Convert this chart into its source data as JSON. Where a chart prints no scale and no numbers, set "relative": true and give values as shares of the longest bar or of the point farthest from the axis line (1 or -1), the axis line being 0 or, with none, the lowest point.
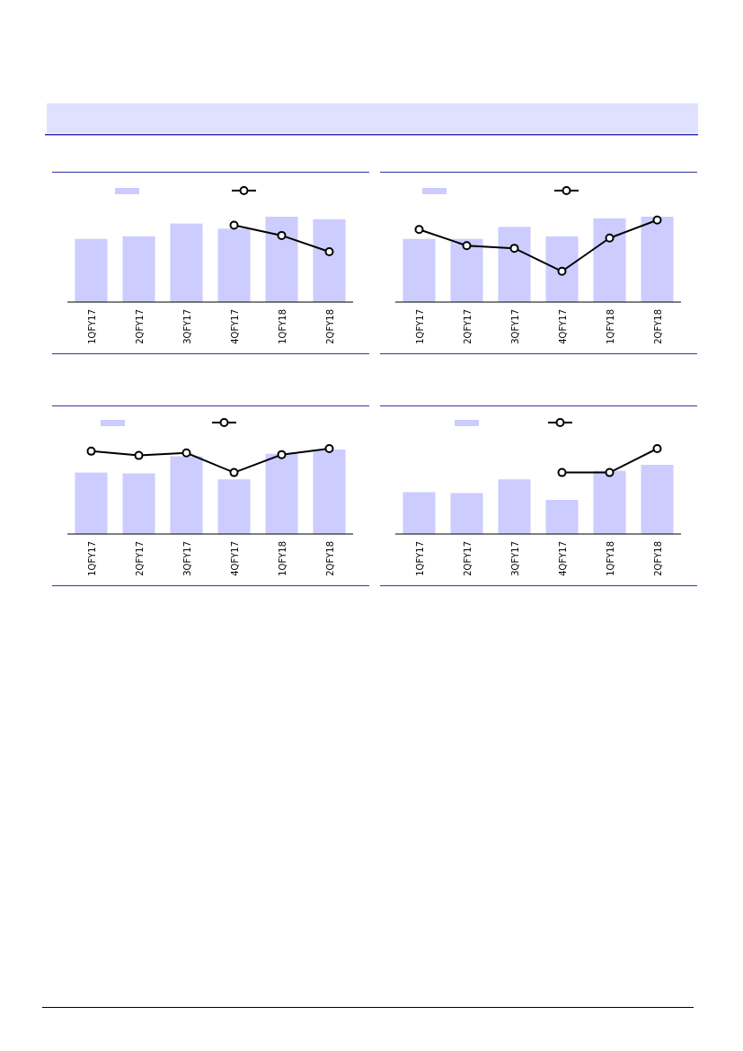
{
  "chart_data": [
    {
      "type": "bar",
      "relative": true,
      "categories": [
        "1QFY17",
        "2QFY17",
        "3QFY17",
        "4QFY17",
        "1QFY18",
        "2QFY18"
      ],
      "series": [
        {
          "color": "#ccccff",
          "values": [
            0.74,
            0.77,
            0.92,
            0.86,
            1,
            0.97
          ]
        },
        {
          "type": "line",
          "color": "#000000",
          "marker": "circle",
          "values": [
            null,
            null,
            null,
            0.9,
            0.78,
            0.59
          ]
        }
      ]
    },
    {
      "type": "bar",
      "relative": true,
      "categories": [
        "1QFY17",
        "2QFY17",
        "3QFY17",
        "4QFY17",
        "1QFY18",
        "2QFY18"
      ],
      "series": [
        {
          "color": "#ccccff",
          "values": [
            0.74,
            0.74,
            0.88,
            0.77,
            0.98,
            1
          ]
        },
        {
          "type": "line",
          "color": "#000000",
          "marker": "circle",
          "values": [
            0.85,
            0.66,
            0.63,
            0.36,
            0.75,
            0.96
          ]
        }
      ]
    },
    {
      "type": "bar",
      "relative": true,
      "categories": [
        "1QFY17",
        "2QFY17",
        "3QFY17",
        "4QFY17",
        "1QFY18",
        "2QFY18"
      ],
      "series": [
        {
          "color": "#ccccff",
          "values": [
            0.72,
            0.71,
            0.91,
            0.64,
            0.94,
            0.99
          ]
        },
        {
          "type": "line",
          "color": "#000000",
          "marker": "circle",
          "values": [
            0.97,
            0.92,
            0.95,
            0.72,
            0.93,
            1
          ]
        }
      ]
    },
    {
      "type": "bar",
      "relative": true,
      "categories": [
        "1QFY17",
        "2QFY17",
        "3QFY17",
        "4QFY17",
        "1QFY18",
        "2QFY18"
      ],
      "series": [
        {
          "color": "#ccccff",
          "values": [
            0.49,
            0.48,
            0.64,
            0.4,
            0.74,
            0.81
          ]
        },
        {
          "type": "line",
          "color": "#000000",
          "marker": "circle",
          "values": [
            null,
            null,
            null,
            0.72,
            0.72,
            1
          ]
        }
      ]
    }
  ]
}
